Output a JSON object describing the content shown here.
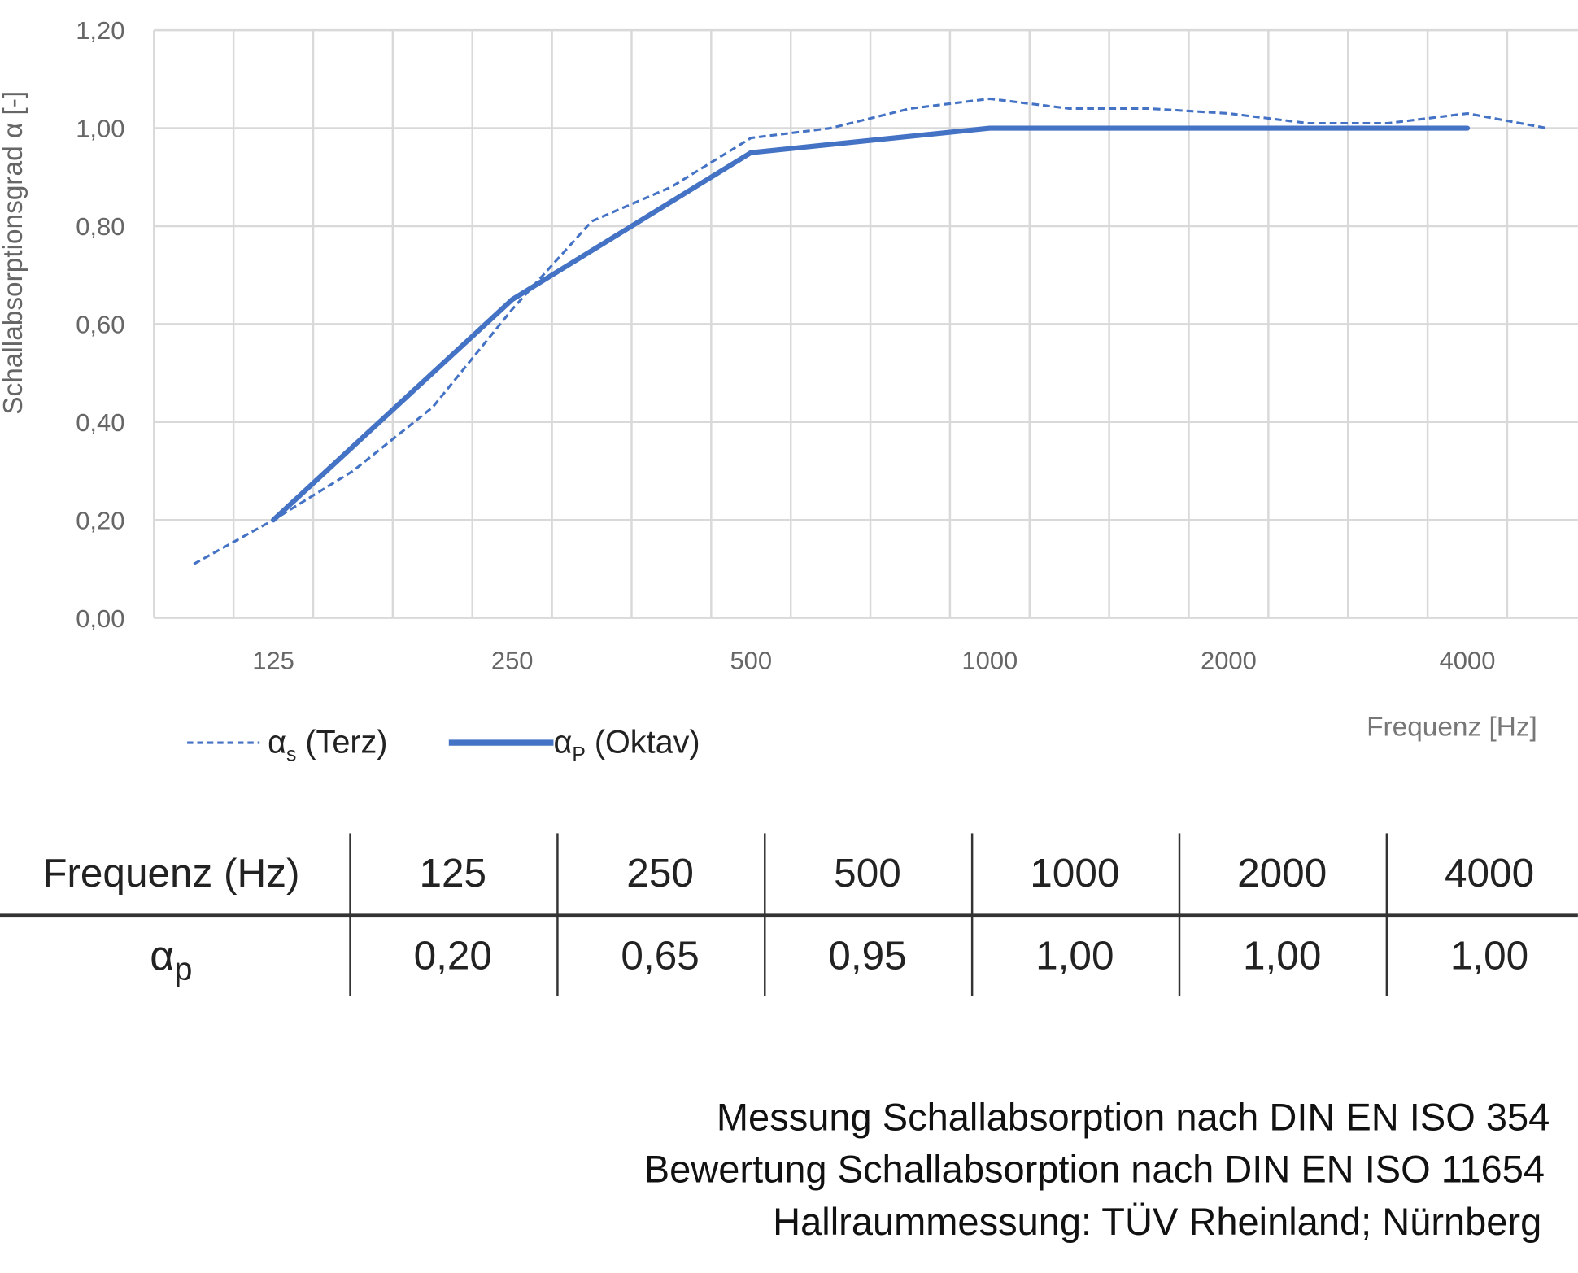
{
  "chart_data": {
    "type": "line",
    "ylabel": "Schallabsorptionsgrad α [-]",
    "xlabel": "Frequenz [Hz]",
    "ylim": [
      0,
      1.2
    ],
    "yticks": [
      "0,00",
      "0,20",
      "0,40",
      "0,60",
      "0,80",
      "1,00",
      "1,20"
    ],
    "grid": true,
    "legend_position": "bottom-left",
    "x_categories": [
      100,
      125,
      160,
      200,
      250,
      315,
      400,
      500,
      630,
      800,
      1000,
      1250,
      1600,
      2000,
      2500,
      3150,
      4000,
      5000
    ],
    "xtick_labels": [
      "125",
      "250",
      "500",
      "1000",
      "2000",
      "4000"
    ],
    "series": [
      {
        "name": "αs (Terz)",
        "name_main": "α",
        "name_sub": "s",
        "name_rest": " (Terz)",
        "style": "dashed",
        "color": "#4472C4",
        "x": [
          100,
          125,
          160,
          200,
          250,
          315,
          400,
          500,
          630,
          800,
          1000,
          1250,
          1600,
          2000,
          2500,
          3150,
          4000,
          5000
        ],
        "values": [
          0.11,
          0.2,
          0.3,
          0.43,
          0.63,
          0.81,
          0.88,
          0.98,
          1.0,
          1.04,
          1.06,
          1.04,
          1.04,
          1.03,
          1.01,
          1.01,
          1.03,
          1.0
        ]
      },
      {
        "name": "αp (Oktav)",
        "name_main": "α",
        "name_sub": "P",
        "name_rest": " (Oktav)",
        "style": "solid",
        "color": "#4472C4",
        "x": [
          125,
          250,
          500,
          1000,
          2000,
          4000
        ],
        "values": [
          0.2,
          0.65,
          0.95,
          1.0,
          1.0,
          1.0
        ]
      }
    ]
  },
  "table": {
    "header_label": "Frequenz (Hz)",
    "row_label_main": "α",
    "row_label_sub": "p",
    "frequencies": [
      "125",
      "250",
      "500",
      "1000",
      "2000",
      "4000"
    ],
    "values": [
      "0,20",
      "0,65",
      "0,95",
      "1,00",
      "1,00",
      "1,00"
    ]
  },
  "footer": {
    "line1": "Messung Schallabsorption nach DIN EN ISO 354",
    "line2": "Bewertung Schallabsorption nach DIN EN ISO 11654",
    "line3": "Hallraummessung: TÜV Rheinland; Nürnberg"
  }
}
